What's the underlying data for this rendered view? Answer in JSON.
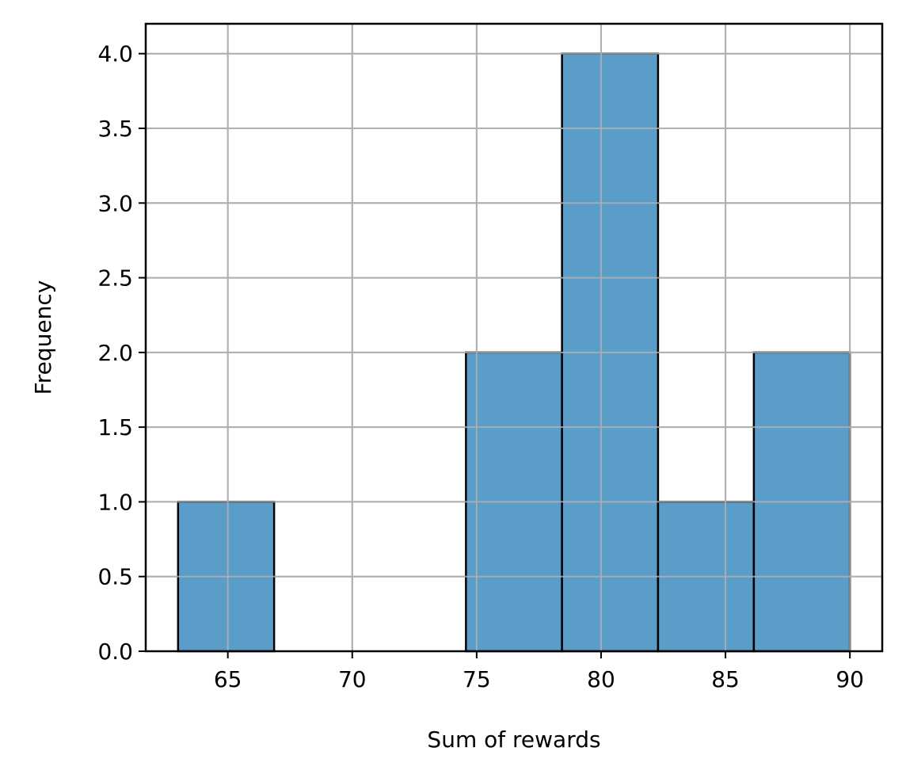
{
  "chart_data": {
    "type": "bar",
    "subtype": "histogram",
    "title": "",
    "xlabel": "Sum of rewards",
    "ylabel": "Frequency",
    "xlim": [
      61.7,
      91.3
    ],
    "ylim": [
      0,
      4.2
    ],
    "grid": true,
    "bin_edges": [
      63.0,
      66.86,
      70.71,
      74.57,
      78.43,
      82.29,
      86.14,
      90.0
    ],
    "values": [
      1,
      0,
      0,
      2,
      4,
      1,
      2
    ],
    "x_ticks": [
      65,
      70,
      75,
      80,
      85,
      90
    ],
    "x_tick_labels": [
      "65",
      "70",
      "75",
      "80",
      "85",
      "90"
    ],
    "y_ticks": [
      0.0,
      0.5,
      1.0,
      1.5,
      2.0,
      2.5,
      3.0,
      3.5,
      4.0
    ],
    "y_tick_labels": [
      "0.0",
      "0.5",
      "1.0",
      "1.5",
      "2.0",
      "2.5",
      "3.0",
      "3.5",
      "4.0"
    ],
    "colors": {
      "bar_fill": "#569ac7",
      "bar_edge": "#000000",
      "grid": "#b0b0b0",
      "axis": "#000000"
    }
  }
}
